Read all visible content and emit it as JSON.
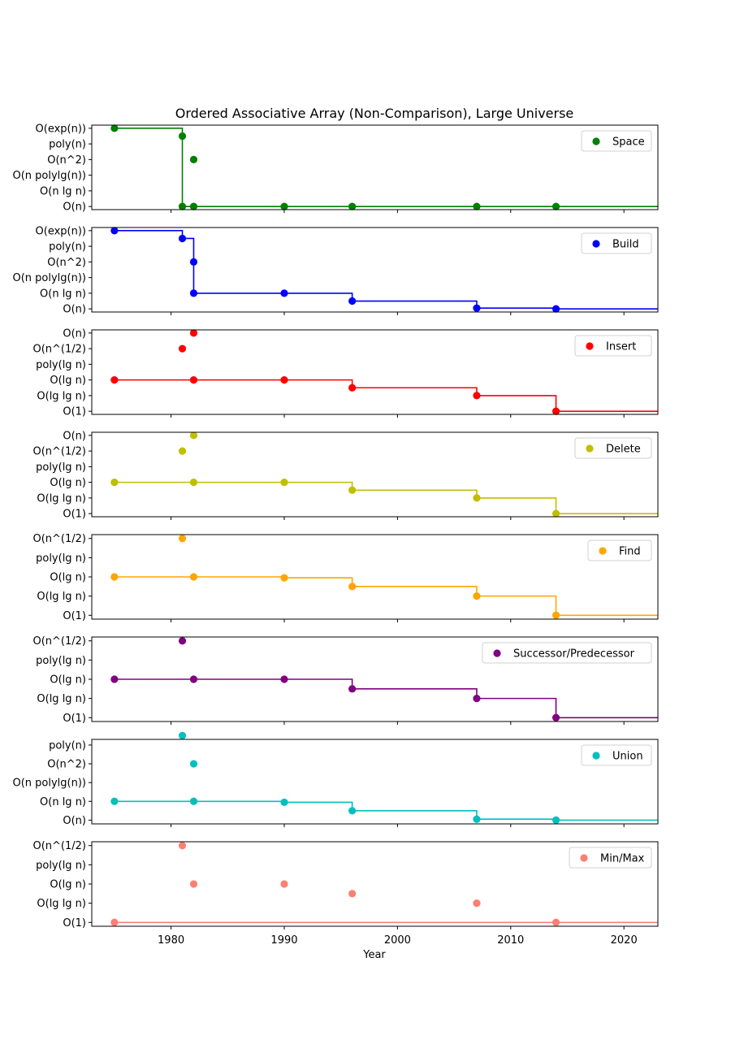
{
  "chart_data": {
    "type": "line",
    "title": "Ordered Associative Array (Non-Comparison), Large Universe",
    "xlabel": "Year",
    "xlim": [
      1973,
      2023
    ],
    "xticks": [
      1980,
      1990,
      2000,
      2010,
      2020
    ],
    "legend_position": "top-right",
    "grid": false,
    "panels": [
      {
        "name": "Space",
        "color": "#008000",
        "ylabels": [
          "O(n)",
          "O(n lg n)",
          "O(n polylg(n))",
          "O(n^2)",
          "poly(n)",
          "O(exp(n))"
        ],
        "yrange": [
          -0.2,
          5.2
        ],
        "points": [
          [
            1975,
            5
          ],
          [
            1981,
            4.5
          ],
          [
            1981,
            0
          ],
          [
            1982,
            3
          ],
          [
            1982,
            0
          ],
          [
            1990,
            0
          ],
          [
            1996,
            0
          ],
          [
            2007,
            0
          ],
          [
            2014,
            0
          ]
        ],
        "step": [
          [
            1975,
            5
          ],
          [
            1981,
            0
          ],
          [
            2023,
            0
          ]
        ]
      },
      {
        "name": "Build",
        "color": "#0000ff",
        "ylabels": [
          "O(n)",
          "O(n lg n)",
          "O(n polylg(n))",
          "O(n^2)",
          "poly(n)",
          "O(exp(n))"
        ],
        "yrange": [
          -0.2,
          5.2
        ],
        "points": [
          [
            1975,
            5
          ],
          [
            1981,
            4.5
          ],
          [
            1982,
            3
          ],
          [
            1982,
            1
          ],
          [
            1990,
            1
          ],
          [
            1996,
            0.5
          ],
          [
            2007,
            0.05
          ],
          [
            2014,
            0
          ]
        ],
        "step": [
          [
            1975,
            5
          ],
          [
            1981,
            4.5
          ],
          [
            1982,
            1
          ],
          [
            1996,
            0.5
          ],
          [
            2007,
            0.05
          ],
          [
            2014,
            0
          ],
          [
            2023,
            0
          ]
        ]
      },
      {
        "name": "Insert",
        "color": "#ff0000",
        "ylabels": [
          "O(1)",
          "O(lg lg n)",
          "O(lg n)",
          "poly(lg n)",
          "O(n^(1/2)",
          "O(n)"
        ],
        "yrange": [
          -0.2,
          5.2
        ],
        "points": [
          [
            1975,
            2
          ],
          [
            1981,
            4
          ],
          [
            1982,
            5
          ],
          [
            1982,
            2
          ],
          [
            1990,
            2
          ],
          [
            1996,
            1.5
          ],
          [
            2007,
            1
          ],
          [
            2014,
            0
          ]
        ],
        "step": [
          [
            1975,
            2
          ],
          [
            1996,
            1.5
          ],
          [
            2007,
            1
          ],
          [
            2014,
            0
          ],
          [
            2023,
            0
          ]
        ]
      },
      {
        "name": "Delete",
        "color": "#bfbf00",
        "ylabels": [
          "O(1)",
          "O(lg lg n)",
          "O(lg n)",
          "poly(lg n)",
          "O(n^(1/2)",
          "O(n)"
        ],
        "yrange": [
          -0.2,
          5.2
        ],
        "points": [
          [
            1975,
            2
          ],
          [
            1981,
            4
          ],
          [
            1982,
            5
          ],
          [
            1982,
            2
          ],
          [
            1990,
            2
          ],
          [
            1996,
            1.5
          ],
          [
            2007,
            1
          ],
          [
            2014,
            0
          ]
        ],
        "step": [
          [
            1975,
            2
          ],
          [
            1996,
            1.5
          ],
          [
            2007,
            1
          ],
          [
            2014,
            0
          ],
          [
            2023,
            0
          ]
        ]
      },
      {
        "name": "Find",
        "color": "#ffa500",
        "ylabels": [
          "O(1)",
          "O(lg lg n)",
          "O(lg n)",
          "poly(lg n)",
          "O(n^(1/2)"
        ],
        "yrange": [
          -0.2,
          4.2
        ],
        "points": [
          [
            1975,
            2
          ],
          [
            1981,
            4
          ],
          [
            1982,
            2
          ],
          [
            1990,
            1.95
          ],
          [
            1996,
            1.5
          ],
          [
            2007,
            1
          ],
          [
            2014,
            0
          ]
        ],
        "step": [
          [
            1975,
            2
          ],
          [
            1990,
            1.95
          ],
          [
            1996,
            1.5
          ],
          [
            2007,
            1
          ],
          [
            2014,
            0
          ],
          [
            2023,
            0
          ]
        ]
      },
      {
        "name": "Successor/Predecessor",
        "color": "#800080",
        "ylabels": [
          "O(1)",
          "O(lg lg n)",
          "O(lg n)",
          "poly(lg n)",
          "O(n^(1/2)"
        ],
        "yrange": [
          -0.2,
          4.2
        ],
        "points": [
          [
            1975,
            2
          ],
          [
            1981,
            4
          ],
          [
            1982,
            2
          ],
          [
            1990,
            2
          ],
          [
            1996,
            1.5
          ],
          [
            2007,
            1
          ],
          [
            2014,
            0
          ]
        ],
        "step": [
          [
            1975,
            2
          ],
          [
            1996,
            1.5
          ],
          [
            2007,
            1
          ],
          [
            2014,
            0
          ],
          [
            2023,
            0
          ]
        ]
      },
      {
        "name": "Union",
        "color": "#00bfbf",
        "ylabels": [
          "O(n)",
          "O(n lg n)",
          "O(n polylg(n))",
          "O(n^2)",
          "poly(n)"
        ],
        "yrange": [
          -0.2,
          4.3
        ],
        "points": [
          [
            1975,
            1
          ],
          [
            1981,
            4.5
          ],
          [
            1982,
            3
          ],
          [
            1982,
            1
          ],
          [
            1990,
            0.95
          ],
          [
            1996,
            0.5
          ],
          [
            2007,
            0.05
          ],
          [
            2014,
            0
          ]
        ],
        "step": [
          [
            1975,
            1
          ],
          [
            1990,
            0.95
          ],
          [
            1996,
            0.5
          ],
          [
            2007,
            0.05
          ],
          [
            2014,
            0
          ],
          [
            2023,
            0
          ]
        ]
      },
      {
        "name": "Min/Max",
        "color": "#fa8072",
        "ylabels": [
          "O(1)",
          "O(lg lg n)",
          "O(lg n)",
          "poly(lg n)",
          "O(n^(1/2)"
        ],
        "yrange": [
          -0.2,
          4.2
        ],
        "points": [
          [
            1975,
            0
          ],
          [
            1981,
            4
          ],
          [
            1982,
            2
          ],
          [
            1990,
            2
          ],
          [
            1996,
            1.5
          ],
          [
            2007,
            1
          ],
          [
            2014,
            0
          ]
        ],
        "step": [
          [
            1975,
            0
          ],
          [
            2023,
            0
          ]
        ]
      }
    ]
  }
}
